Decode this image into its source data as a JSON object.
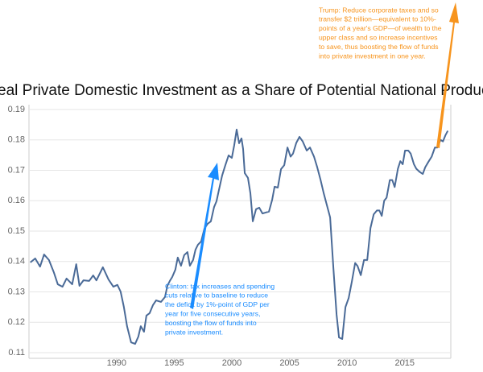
{
  "chart_data": {
    "type": "line",
    "title": "Real Private Domestic Investment as a Share of Potential National Product",
    "x": [
      1982.52,
      1982.94,
      1983.36,
      1983.71,
      1984.13,
      1984.55,
      1984.9,
      1985.31,
      1985.66,
      1986.15,
      1986.5,
      1986.78,
      1987.13,
      1987.62,
      1987.97,
      1988.25,
      1988.81,
      1989.3,
      1989.72,
      1990.07,
      1990.35,
      1990.63,
      1990.91,
      1991.26,
      1991.61,
      1991.89,
      1992.1,
      1992.38,
      1992.59,
      1992.87,
      1993.15,
      1993.43,
      1993.85,
      1994.2,
      1994.41,
      1994.62,
      1994.83,
      1995.1,
      1995.31,
      1995.59,
      1995.87,
      1996.15,
      1996.36,
      1996.64,
      1996.85,
      1997.06,
      1997.34,
      1997.62,
      1997.9,
      1998.18,
      1998.46,
      1998.67,
      1998.88,
      1999.16,
      1999.44,
      1999.72,
      2000.0,
      2000.21,
      2000.42,
      2000.63,
      2000.84,
      2000.98,
      2001.12,
      2001.4,
      2001.61,
      2001.82,
      2002.1,
      2002.38,
      2002.66,
      2002.94,
      2003.22,
      2003.5,
      2003.71,
      2003.99,
      2004.27,
      2004.55,
      2004.83,
      2005.1,
      2005.31,
      2005.59,
      2005.87,
      2006.15,
      2006.5,
      2006.78,
      2007.13,
      2007.41,
      2007.69,
      2007.97,
      2008.25,
      2008.53,
      2008.81,
      2009.09,
      2009.3,
      2009.58,
      2009.86,
      2010.14,
      2010.42,
      2010.7,
      2010.91,
      2011.19,
      2011.47,
      2011.75,
      2012.03,
      2012.31,
      2012.59,
      2012.8,
      2013.01,
      2013.22,
      2013.43,
      2013.71,
      2013.92,
      2014.13,
      2014.41,
      2014.62,
      2014.83,
      2015.03,
      2015.31,
      2015.52,
      2015.8,
      2016.01,
      2016.29,
      2016.57,
      2016.78,
      2017.06,
      2017.34,
      2017.62,
      2017.83,
      2018.11,
      2018.32,
      2018.53,
      2018.74
    ],
    "series": [
      {
        "color": "#4a6a97",
        "values": [
          0.1397,
          0.141,
          0.1383,
          0.1423,
          0.1405,
          0.1365,
          0.1325,
          0.1317,
          0.1344,
          0.1325,
          0.1391,
          0.132,
          0.1338,
          0.1336,
          0.1354,
          0.1338,
          0.1381,
          0.1341,
          0.1317,
          0.1323,
          0.1301,
          0.1251,
          0.1187,
          0.1134,
          0.1129,
          0.1153,
          0.1187,
          0.1169,
          0.1222,
          0.123,
          0.1256,
          0.1272,
          0.1267,
          0.1283,
          0.132,
          0.1336,
          0.1349,
          0.1373,
          0.1413,
          0.1386,
          0.1421,
          0.1431,
          0.1386,
          0.1405,
          0.1439,
          0.1455,
          0.1466,
          0.1508,
          0.1524,
          0.1532,
          0.1579,
          0.1598,
          0.1635,
          0.1683,
          0.1717,
          0.1749,
          0.1741,
          0.1783,
          0.1834,
          0.1789,
          0.1805,
          0.177,
          0.1691,
          0.1675,
          0.1625,
          0.1532,
          0.1572,
          0.1577,
          0.1558,
          0.1561,
          0.1564,
          0.1603,
          0.1646,
          0.1643,
          0.1704,
          0.1717,
          0.1775,
          0.1745,
          0.1755,
          0.179,
          0.181,
          0.1795,
          0.1765,
          0.1775,
          0.1745,
          0.171,
          0.167,
          0.1625,
          0.1585,
          0.1545,
          0.138,
          0.1225,
          0.115,
          0.1145,
          0.125,
          0.128,
          0.1335,
          0.1395,
          0.1385,
          0.1355,
          0.1405,
          0.1405,
          0.151,
          0.1555,
          0.1568,
          0.1568,
          0.155,
          0.16,
          0.161,
          0.1668,
          0.1668,
          0.1645,
          0.1705,
          0.173,
          0.172,
          0.1765,
          0.1765,
          0.1755,
          0.172,
          0.1705,
          0.1695,
          0.1688,
          0.171,
          0.1728,
          0.1745,
          0.1775,
          0.1775,
          0.18,
          0.1795,
          0.1815,
          0.183
        ]
      }
    ],
    "xlim": [
      1982.4,
      2019
    ],
    "xticks": [
      1990,
      1995,
      2000,
      2005,
      2010,
      2015
    ],
    "ylim": [
      0.11,
      0.19
    ],
    "yticks": [
      0.11,
      0.12,
      0.13,
      0.14,
      0.15,
      0.16,
      0.17,
      0.18,
      0.19
    ],
    "grid": true,
    "annotations": [
      {
        "color": "#1a8cff",
        "lines": [
          "Clinton: tax increases and spending",
          "cuts relative to baseline to reduce",
          "the deficit by 1%-point of GDP per",
          "year for five consecutive years,",
          "boosting the flow of funds into",
          "private investment."
        ]
      },
      {
        "color": "#f7941d",
        "lines": [
          "Trump: Reduce corporate taxes and so",
          "transfer $2 trillion—equivalent to  10%-",
          "points of a year's GDP—of wealth to the",
          "upper class and so increase incentives",
          "to save, thus boosting the flow of funds",
          "into private investment in one year."
        ]
      }
    ]
  }
}
